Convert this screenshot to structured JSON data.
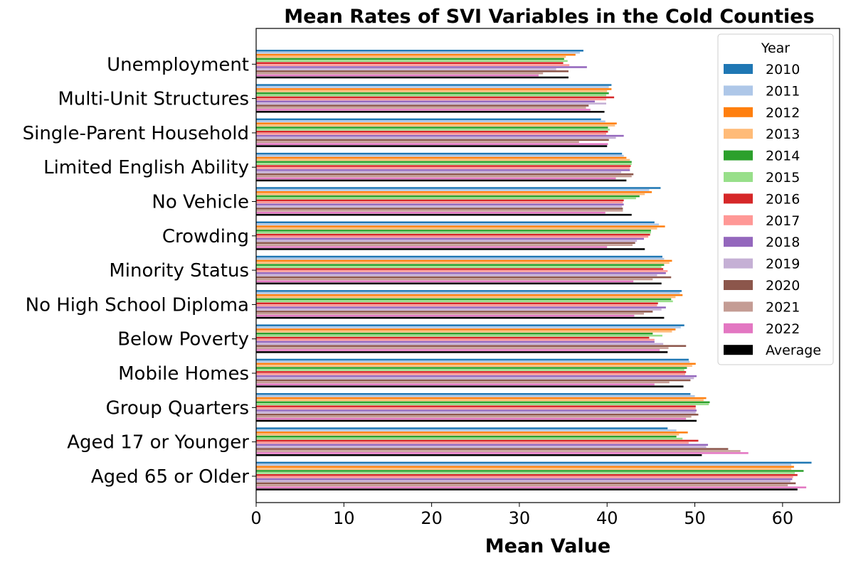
{
  "chart_data": {
    "type": "bar",
    "orientation": "horizontal",
    "title": "Mean Rates of SVI Variables in the Cold Counties",
    "xlabel": "Mean Value",
    "ylabel": "",
    "xlim": [
      0,
      66.5
    ],
    "xticks": [
      0,
      10,
      20,
      30,
      40,
      50,
      60
    ],
    "grid": false,
    "legend": {
      "title": "Year",
      "position": "top-right"
    },
    "categories": [
      "Unemployment",
      "Multi-Unit Structures",
      "Single-Parent Household",
      "Limited English Ability",
      "No Vehicle",
      "Crowding",
      "Minority Status",
      "No High School Diploma",
      "Below Poverty",
      "Mobile Homes",
      "Group Quarters",
      "Aged 17 or Younger",
      "Aged 65 or Older"
    ],
    "series": [
      {
        "name": "2010",
        "color": "#1f77b4",
        "values": [
          37.3,
          40.5,
          39.3,
          41.7,
          46.1,
          45.4,
          46.3,
          48.5,
          48.8,
          49.3,
          49.5,
          46.9,
          63.3
        ]
      },
      {
        "name": "2011",
        "color": "#aec7e8",
        "values": [
          36.9,
          40.2,
          39.8,
          41.9,
          44.8,
          45.9,
          46.5,
          48.3,
          48.4,
          49.4,
          50.0,
          47.9,
          61.0
        ]
      },
      {
        "name": "2012",
        "color": "#ff7f0e",
        "values": [
          36.4,
          40.5,
          41.1,
          42.2,
          45.1,
          46.6,
          47.4,
          48.6,
          47.8,
          50.1,
          51.3,
          49.2,
          61.3
        ]
      },
      {
        "name": "2013",
        "color": "#ffbb78",
        "values": [
          35.3,
          40.0,
          40.9,
          42.6,
          44.3,
          45.7,
          47.1,
          47.8,
          47.4,
          49.7,
          51.0,
          48.2,
          61.0
        ]
      },
      {
        "name": "2014",
        "color": "#2ca02c",
        "values": [
          35.1,
          40.2,
          40.1,
          42.8,
          43.7,
          45.0,
          46.5,
          47.3,
          45.2,
          49.1,
          51.7,
          47.9,
          62.4
        ]
      },
      {
        "name": "2015",
        "color": "#98df8a",
        "values": [
          35.5,
          39.9,
          40.3,
          42.8,
          43.3,
          45.0,
          46.2,
          47.5,
          46.3,
          48.8,
          51.6,
          48.6,
          61.4
        ]
      },
      {
        "name": "2016",
        "color": "#d62728",
        "values": [
          35.0,
          40.8,
          40.1,
          42.7,
          41.9,
          44.9,
          46.4,
          45.8,
          44.8,
          49.0,
          50.1,
          50.4,
          61.7
        ]
      },
      {
        "name": "2017",
        "color": "#ff9896",
        "values": [
          35.7,
          39.9,
          39.9,
          42.6,
          41.8,
          44.7,
          46.9,
          45.7,
          45.4,
          48.9,
          50.1,
          49.3,
          61.2
        ]
      },
      {
        "name": "2018",
        "color": "#9467bd",
        "values": [
          37.7,
          38.6,
          41.9,
          42.6,
          41.9,
          44.2,
          46.7,
          46.7,
          45.4,
          50.2,
          50.2,
          51.5,
          61.1
        ]
      },
      {
        "name": "2019",
        "color": "#c5b0d5",
        "values": [
          34.2,
          39.9,
          41.0,
          41.6,
          41.7,
          43.4,
          45.7,
          46.2,
          46.4,
          49.9,
          50.1,
          51.3,
          60.9
        ]
      },
      {
        "name": "2020",
        "color": "#8c564b",
        "values": [
          35.6,
          37.9,
          40.2,
          43.0,
          41.8,
          43.2,
          47.3,
          45.2,
          49.0,
          49.5,
          50.4,
          53.8,
          61.5
        ]
      },
      {
        "name": "2021",
        "color": "#c49c94",
        "values": [
          32.7,
          37.6,
          36.8,
          42.8,
          41.8,
          42.9,
          45.2,
          44.2,
          47.0,
          47.1,
          49.6,
          55.2,
          60.6
        ]
      },
      {
        "name": "2022",
        "color": "#e377c2",
        "values": [
          32.2,
          38.1,
          40.1,
          41.0,
          39.8,
          40.0,
          43.0,
          43.1,
          46.0,
          45.4,
          49.0,
          56.1,
          62.7
        ]
      },
      {
        "name": "Average",
        "color": "#000000",
        "values": [
          35.6,
          39.7,
          40.0,
          42.2,
          42.8,
          44.3,
          46.2,
          46.5,
          46.9,
          48.7,
          50.2,
          50.8,
          61.7
        ]
      }
    ]
  }
}
